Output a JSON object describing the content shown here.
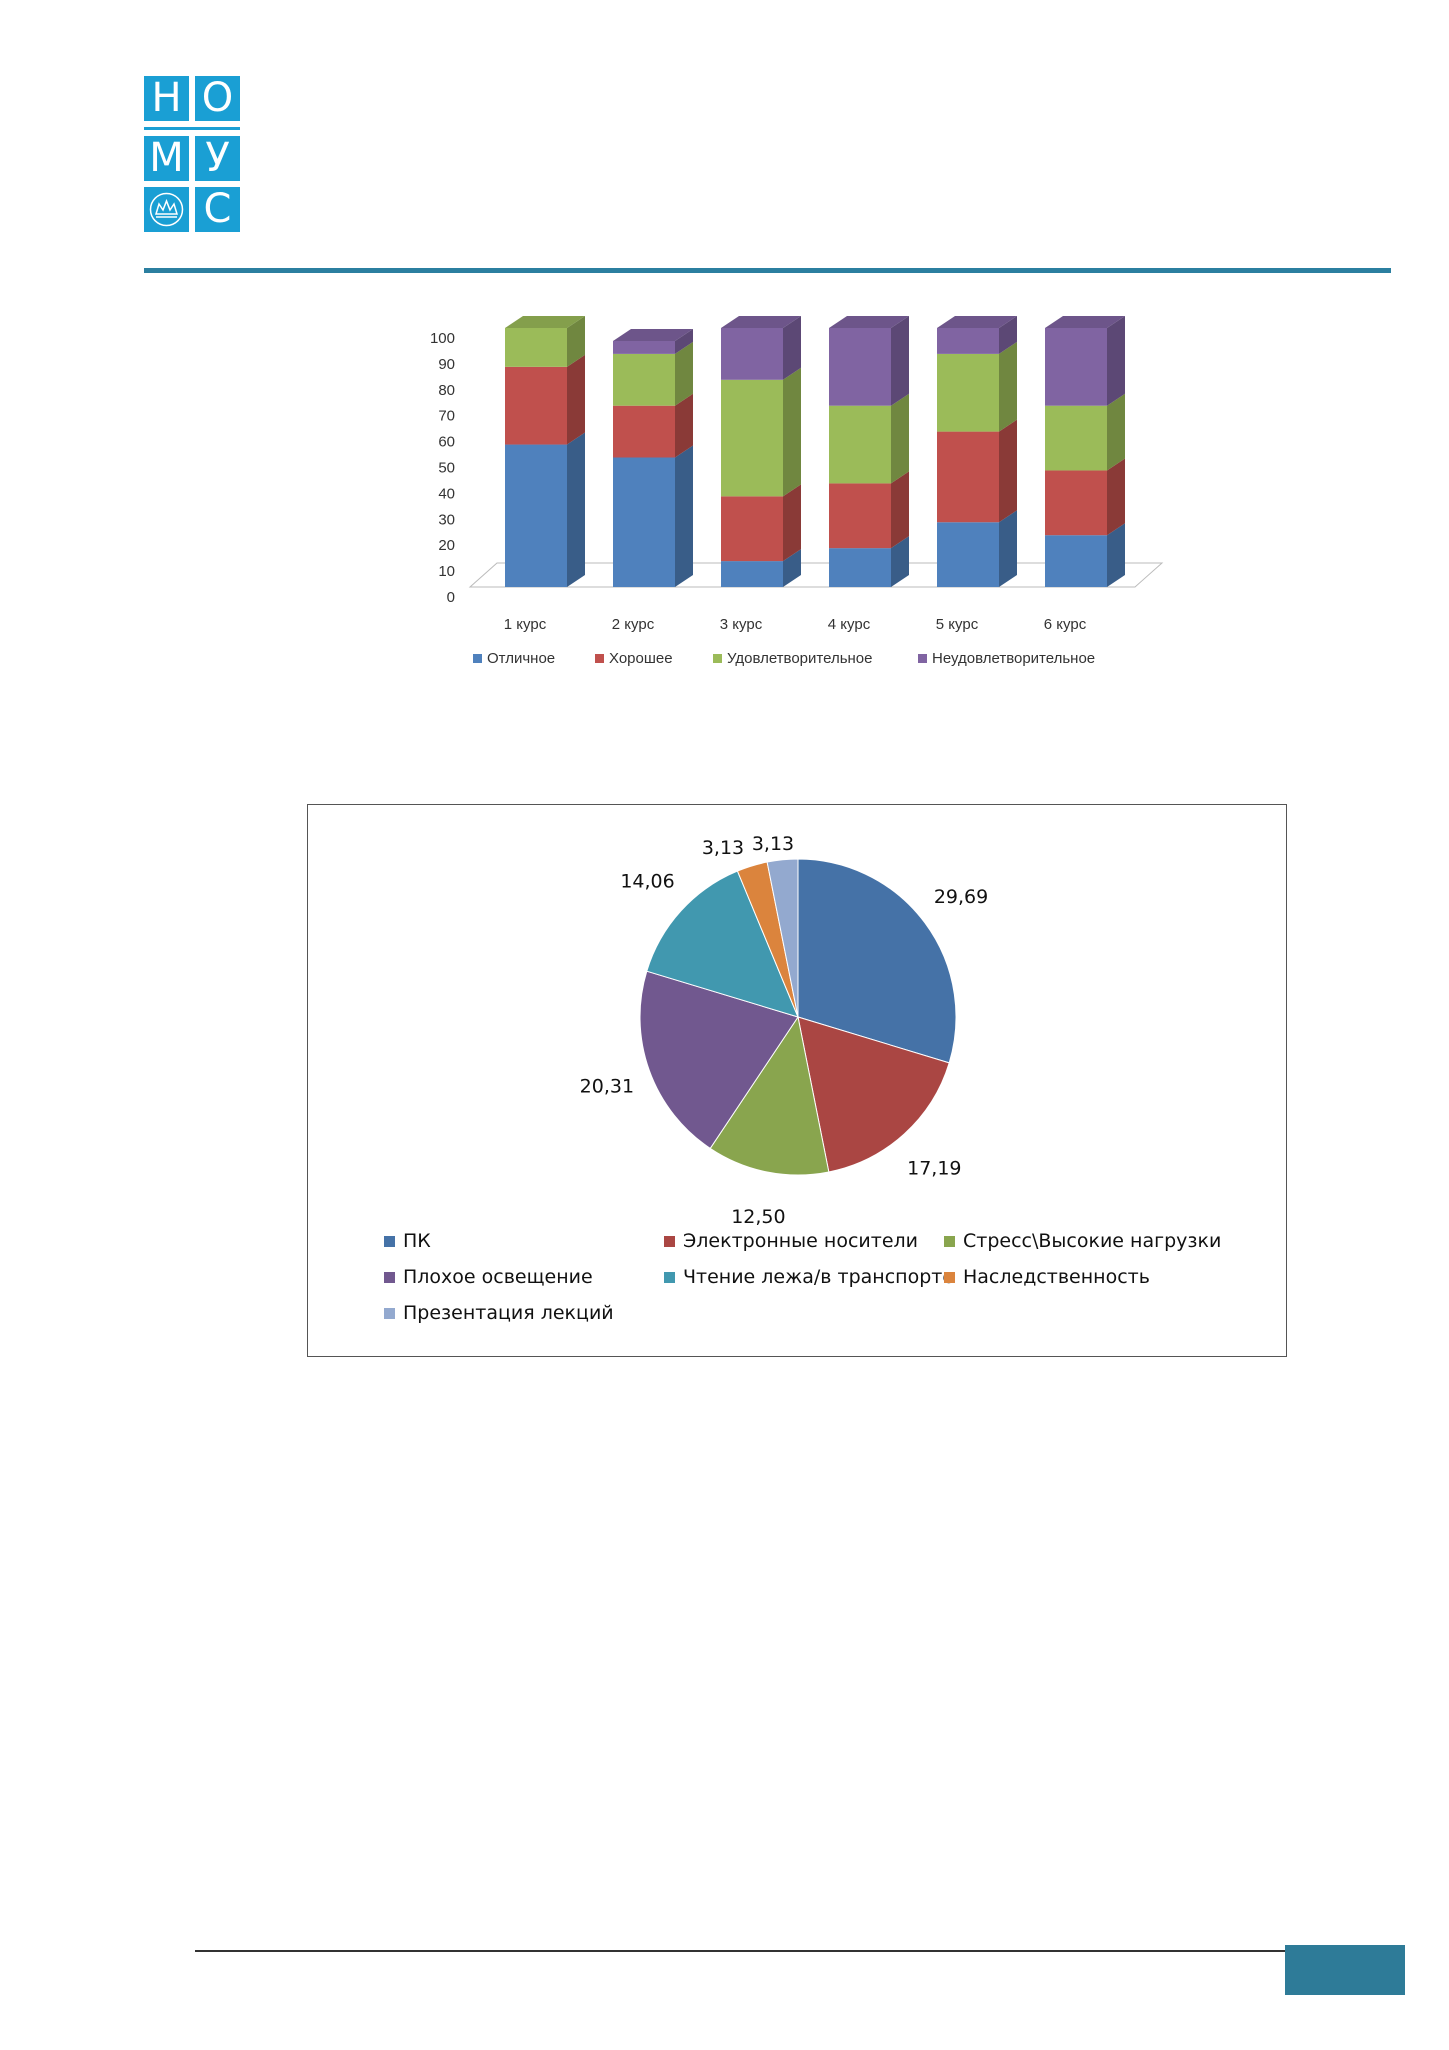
{
  "logo": {
    "rows": [
      [
        "Н",
        "О"
      ],
      [
        "М",
        "У"
      ],
      [
        "",
        "С"
      ]
    ],
    "emblem_icon": "crown-emblem-icon"
  },
  "colors": {
    "brand": "#1a9fd4",
    "rule": "#2b7fa0",
    "page_box": "#2e7b98"
  },
  "chart_data": [
    {
      "type": "bar",
      "stacked": true,
      "style": "3d",
      "categories": [
        "1 курс",
        "2 курс",
        "3 курс",
        "4 курс",
        "5 курс",
        "6 курс"
      ],
      "series": [
        {
          "name": "Отличное",
          "color": "#4f81bd",
          "values": [
            55,
            50,
            10,
            15,
            25,
            20
          ]
        },
        {
          "name": "Хорошее",
          "color": "#c0504d",
          "values": [
            30,
            20,
            25,
            25,
            35,
            25
          ]
        },
        {
          "name": "Удовлетворительное",
          "color": "#9bbb59",
          "values": [
            15,
            20,
            45,
            30,
            30,
            25
          ]
        },
        {
          "name": "Неудовлетворительное",
          "color": "#8064a2",
          "values": [
            0,
            5,
            20,
            30,
            10,
            30
          ]
        }
      ],
      "yticks": [
        "0",
        "10",
        "20",
        "30",
        "40",
        "50",
        "60",
        "70",
        "80",
        "90",
        "100"
      ],
      "ylim": [
        0,
        100
      ],
      "legend_position": "bottom"
    },
    {
      "type": "pie",
      "labels": [
        "ПК",
        "Электронные носители",
        "Стресс\\Высокие нагрузки",
        "Плохое освещение",
        "Чтение лежа/в транспорте",
        "Наследственность",
        "Презентация лекций"
      ],
      "values": [
        29.69,
        17.19,
        12.5,
        20.31,
        14.06,
        3.13,
        3.13
      ],
      "value_labels": [
        "29,69",
        "17,19",
        "12,50",
        "20,31",
        "14,06",
        "3,13",
        "3,13"
      ],
      "colors": [
        "#4572a7",
        "#aa4643",
        "#89a54e",
        "#71588f",
        "#4198af",
        "#db843d",
        "#93a9cf"
      ],
      "legend_position": "bottom"
    }
  ]
}
